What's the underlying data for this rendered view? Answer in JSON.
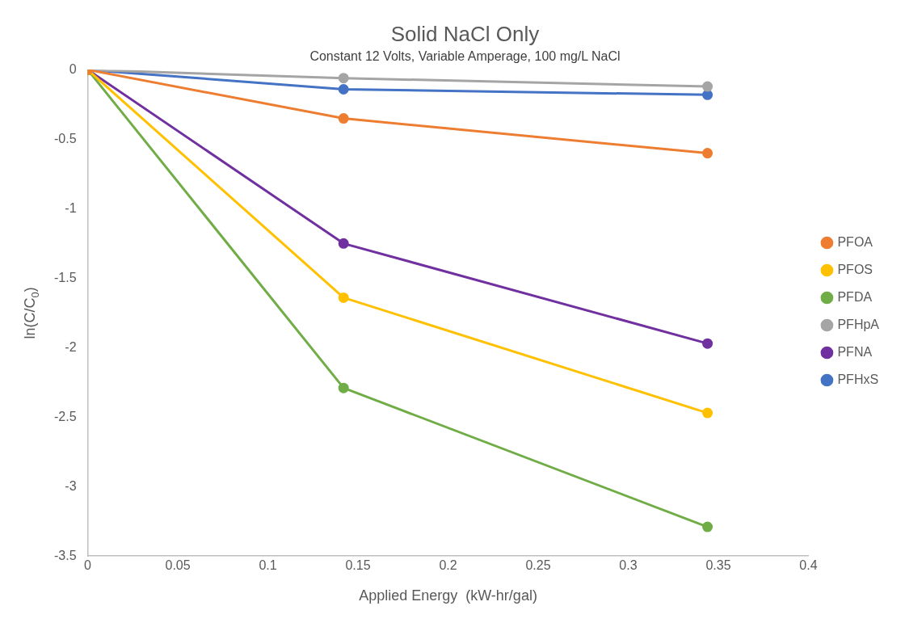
{
  "chart_data": {
    "type": "line",
    "title": "Solid NaCl Only",
    "subtitle": "Constant 12 Volts, Variable Amperage, 100 mg/L NaCl",
    "xlabel": "Applied Energy  (kW-hr/gal)",
    "ylabel": "ln(C/C$_{0}$)",
    "x": [
      0,
      0.142,
      0.344
    ],
    "series": [
      {
        "name": "PFOA",
        "color": "#ed7d31",
        "values": [
          0,
          -0.35,
          -0.6
        ]
      },
      {
        "name": "PFOS",
        "color": "#ffc000",
        "values": [
          0,
          -1.64,
          -2.47
        ]
      },
      {
        "name": "PFDA",
        "color": "#70ad47",
        "values": [
          0,
          -2.29,
          -3.29
        ]
      },
      {
        "name": "PFHpA",
        "color": "#a5a5a5",
        "values": [
          0,
          -0.06,
          -0.12
        ]
      },
      {
        "name": "PFNA",
        "color": "#7030a0",
        "values": [
          0,
          -1.25,
          -1.97
        ]
      },
      {
        "name": "PFHxS",
        "color": "#4472c4",
        "values": [
          0,
          -0.14,
          -0.18
        ]
      }
    ],
    "xlim": [
      0,
      0.4
    ],
    "xticks": [
      0,
      0.05,
      0.1,
      0.15,
      0.2,
      0.25,
      0.3,
      0.35,
      0.4
    ],
    "ylim": [
      -3.5,
      0
    ],
    "yticks": [
      0,
      -0.5,
      -1,
      -1.5,
      -2,
      -2.5,
      -3,
      -3.5
    ],
    "grid": false,
    "legend": "right",
    "marker": "circle",
    "line_style": "solid"
  }
}
